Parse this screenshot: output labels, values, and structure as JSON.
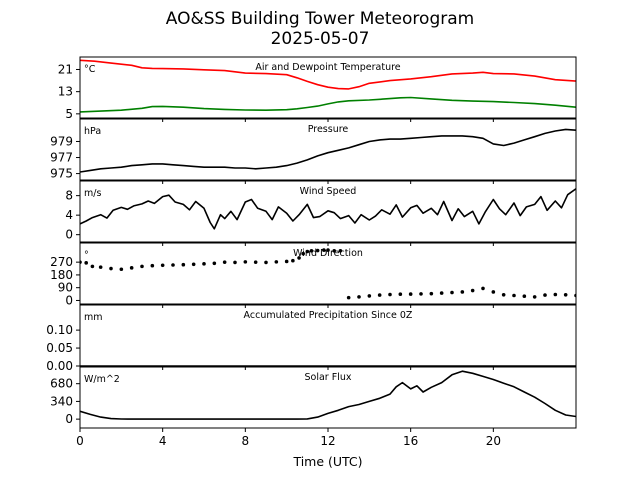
{
  "figure": {
    "title_line1": "AO&SS Building Tower Meteorogram",
    "title_line2": "2025-05-07",
    "xlabel": "Time (UTC)",
    "x_ticks": [
      0,
      4,
      8,
      12,
      16,
      20
    ],
    "x_range": [
      0,
      24
    ]
  },
  "chart_data": [
    {
      "type": "line",
      "title": "Air and Dewpoint Temperature",
      "unit": "°C",
      "ylim": [
        3.5,
        25.5
      ],
      "yticks": [
        5,
        13,
        21
      ],
      "series": [
        {
          "color": "#ff0000",
          "x": [
            0,
            0.7,
            1.5,
            2.5,
            3,
            3.5,
            4,
            5,
            6,
            7,
            8,
            9,
            10,
            10.5,
            11,
            11.5,
            12,
            12.5,
            13,
            13.5,
            14,
            15,
            16,
            17,
            18,
            19,
            19.5,
            20,
            21,
            22,
            23,
            24
          ],
          "values": [
            24.3,
            24.0,
            23.3,
            22.5,
            21.6,
            21.4,
            21.3,
            21.2,
            20.9,
            20.6,
            19.7,
            19.5,
            19.1,
            18.0,
            16.7,
            15.5,
            14.6,
            14.1,
            14.0,
            14.8,
            16.0,
            17.0,
            17.6,
            18.4,
            19.4,
            19.7,
            20.0,
            19.5,
            19.4,
            18.6,
            17.3,
            16.8
          ]
        },
        {
          "color": "#008000",
          "x": [
            0,
            1,
            2,
            3,
            3.5,
            4,
            5,
            6,
            7,
            8,
            9,
            10,
            10.5,
            11,
            11.5,
            12,
            12.5,
            13,
            14,
            15,
            15.5,
            16,
            17,
            18,
            19,
            20,
            21,
            22,
            23,
            24
          ],
          "values": [
            5.7,
            6.0,
            6.3,
            7.0,
            7.6,
            7.7,
            7.4,
            6.9,
            6.6,
            6.4,
            6.3,
            6.5,
            6.8,
            7.3,
            7.8,
            8.6,
            9.3,
            9.7,
            10.0,
            10.5,
            10.8,
            10.9,
            10.4,
            9.9,
            9.6,
            9.4,
            9.1,
            8.7,
            8.1,
            7.4
          ]
        }
      ]
    },
    {
      "type": "line",
      "title": "Pressure",
      "unit": "hPa",
      "ylim": [
        974.2,
        981.8
      ],
      "yticks": [
        975,
        977,
        979
      ],
      "series": [
        {
          "color": "#000000",
          "x": [
            0,
            0.5,
            1,
            1.5,
            2,
            2.5,
            3,
            3.5,
            4,
            4.5,
            5,
            5.5,
            6,
            6.5,
            7,
            7.5,
            8,
            8.5,
            9,
            9.5,
            10,
            10.5,
            11,
            11.5,
            12,
            12.5,
            13,
            13.5,
            14,
            14.5,
            15,
            15.5,
            16,
            16.5,
            17,
            17.5,
            18,
            18.5,
            19,
            19.5,
            20,
            20.5,
            21,
            21.5,
            22,
            22.5,
            23,
            23.5,
            24
          ],
          "values": [
            975.2,
            975.4,
            975.6,
            975.7,
            975.8,
            976.0,
            976.1,
            976.2,
            976.2,
            976.1,
            976.0,
            975.9,
            975.8,
            975.8,
            975.8,
            975.7,
            975.7,
            975.6,
            975.7,
            975.8,
            976.0,
            976.3,
            976.7,
            977.2,
            977.6,
            977.9,
            978.2,
            978.6,
            979.0,
            979.2,
            979.3,
            979.3,
            979.4,
            979.5,
            979.6,
            979.7,
            979.7,
            979.7,
            979.6,
            979.4,
            978.7,
            978.5,
            978.8,
            979.2,
            979.6,
            980.0,
            980.3,
            980.5,
            980.4
          ]
        }
      ]
    },
    {
      "type": "line",
      "title": "Wind Speed",
      "unit": "m/s",
      "ylim": [
        -1.5,
        11
      ],
      "yticks": [
        0,
        4,
        8
      ],
      "series": [
        {
          "color": "#000000",
          "x": [
            0,
            0.3,
            0.6,
            1,
            1.3,
            1.6,
            2,
            2.3,
            2.6,
            3,
            3.3,
            3.6,
            4,
            4.3,
            4.6,
            5,
            5.3,
            5.6,
            6,
            6.3,
            6.5,
            6.8,
            7,
            7.3,
            7.6,
            8,
            8.3,
            8.6,
            9,
            9.3,
            9.6,
            10,
            10.3,
            10.6,
            11,
            11.3,
            11.6,
            12,
            12.3,
            12.6,
            13,
            13.3,
            13.6,
            14,
            14.3,
            14.6,
            15,
            15.3,
            15.6,
            16,
            16.3,
            16.6,
            17,
            17.3,
            17.6,
            18,
            18.3,
            18.6,
            19,
            19.3,
            19.6,
            20,
            20.3,
            20.6,
            21,
            21.3,
            21.6,
            22,
            22.3,
            22.6,
            23,
            23.3,
            23.6,
            24
          ],
          "values": [
            2.2,
            2.8,
            3.5,
            4.1,
            3.4,
            5.0,
            5.6,
            5.2,
            5.9,
            6.3,
            6.9,
            6.4,
            7.8,
            8.1,
            6.7,
            6.2,
            5.1,
            6.8,
            5.4,
            2.5,
            1.2,
            4.1,
            3.3,
            4.8,
            3.1,
            6.7,
            7.2,
            5.4,
            4.8,
            3.1,
            5.7,
            4.4,
            2.8,
            4.1,
            6.2,
            3.5,
            3.7,
            4.9,
            4.5,
            3.3,
            3.9,
            2.4,
            4.1,
            3.0,
            3.8,
            5.1,
            4.2,
            6.1,
            3.6,
            5.5,
            6.0,
            4.4,
            5.4,
            4.1,
            6.8,
            2.9,
            5.3,
            3.7,
            4.8,
            2.2,
            4.6,
            7.2,
            5.3,
            4.1,
            6.5,
            3.9,
            5.7,
            6.2,
            7.8,
            5.0,
            6.9,
            5.5,
            8.2,
            9.4
          ]
        }
      ]
    },
    {
      "type": "scatter",
      "title": "Wind Direction",
      "unit": "°",
      "ylim": [
        -25,
        405
      ],
      "yticks": [
        0,
        90,
        180,
        270
      ],
      "series": [
        {
          "color": "#000000",
          "x": [
            0,
            0.3,
            0.6,
            1,
            1.5,
            2,
            2.5,
            3,
            3.5,
            4,
            4.5,
            5,
            5.5,
            6,
            6.5,
            7,
            7.5,
            8,
            8.5,
            9,
            9.5,
            10,
            10.3,
            10.6,
            10.8,
            11,
            11.2,
            11.5,
            11.8,
            12,
            12.3,
            12.6,
            13,
            13.5,
            14,
            14.5,
            15,
            15.5,
            16,
            16.5,
            17,
            17.5,
            18,
            18.5,
            19,
            19.5,
            20,
            20.5,
            21,
            21.5,
            22,
            22.5,
            23,
            23.5,
            24
          ],
          "values": [
            270,
            265,
            240,
            235,
            225,
            220,
            230,
            240,
            245,
            248,
            250,
            252,
            255,
            258,
            262,
            270,
            268,
            272,
            270,
            268,
            272,
            275,
            280,
            300,
            330,
            345,
            350,
            352,
            355,
            355,
            350,
            350,
            20,
            25,
            32,
            38,
            42,
            44,
            45,
            46,
            48,
            52,
            56,
            60,
            70,
            85,
            60,
            40,
            35,
            30,
            25,
            38,
            42,
            40,
            35
          ]
        }
      ]
    },
    {
      "type": "line",
      "title": "Accumulated Precipitation Since 0Z",
      "unit": "mm",
      "ylim": [
        0,
        0.17
      ],
      "yticks": [
        0.0,
        0.05,
        0.1
      ],
      "ytick_labels": [
        "0.00",
        "0.05",
        "0.10"
      ],
      "series": [
        {
          "color": "#000000",
          "x": [
            0,
            24
          ],
          "values": [
            0,
            0
          ]
        }
      ]
    },
    {
      "type": "line",
      "title": "Solar Flux",
      "unit": "W/m^2",
      "ylim": [
        -170,
        1000
      ],
      "yticks": [
        0,
        340,
        680
      ],
      "series": [
        {
          "color": "#000000",
          "x": [
            0,
            0.5,
            1,
            1.5,
            2,
            3,
            4,
            5,
            6,
            7,
            8,
            9,
            10,
            10.5,
            11,
            11.5,
            12,
            12.5,
            13,
            13.5,
            14,
            14.5,
            15,
            15.3,
            15.6,
            16,
            16.3,
            16.6,
            17,
            17.5,
            18,
            18.5,
            19,
            19.5,
            20,
            20.5,
            21,
            21.5,
            22,
            22.5,
            23,
            23.5,
            24
          ],
          "values": [
            150,
            90,
            40,
            10,
            2,
            0,
            0,
            0,
            0,
            0,
            0,
            0,
            0,
            0,
            5,
            40,
            110,
            170,
            240,
            280,
            340,
            400,
            480,
            620,
            700,
            580,
            640,
            520,
            610,
            700,
            850,
            920,
            880,
            820,
            760,
            690,
            620,
            520,
            420,
            300,
            170,
            80,
            50
          ]
        }
      ]
    }
  ]
}
